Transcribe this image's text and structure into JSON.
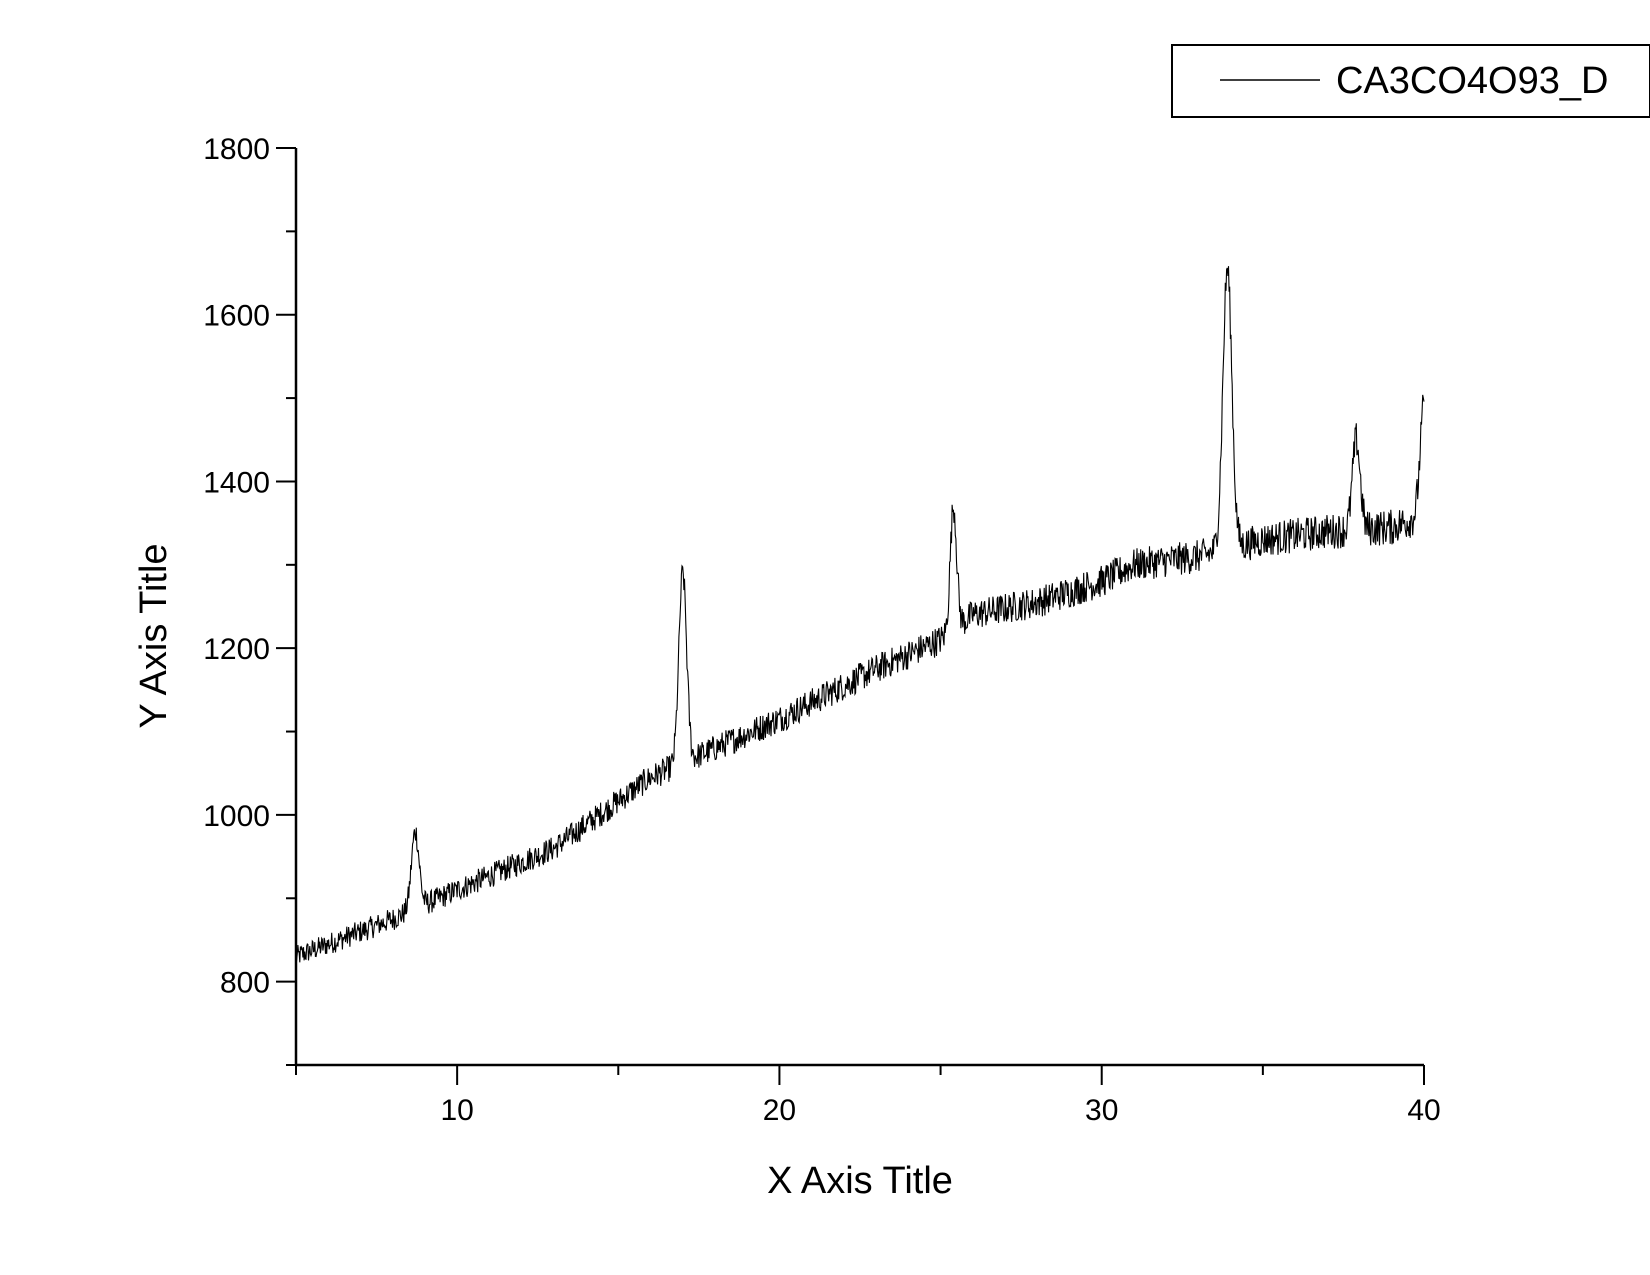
{
  "chart_data": {
    "type": "line",
    "xlabel": "X Axis Title",
    "ylabel": "Y Axis Title",
    "xlim": [
      5,
      40
    ],
    "ylim": [
      700,
      1800
    ],
    "x_ticks": [
      10,
      20,
      30,
      40
    ],
    "x_minor_ticks": [
      5,
      15,
      25,
      35
    ],
    "y_ticks": [
      800,
      1000,
      1200,
      1400,
      1600,
      1800
    ],
    "y_minor_ticks": [
      700,
      900,
      1100,
      1300,
      1500,
      1700
    ],
    "grid": false,
    "legend_position": "top-right",
    "line_color": "#000000",
    "series": [
      {
        "name": "CA3CO4O93_D",
        "baseline": [
          [
            5,
            830
          ],
          [
            8,
            875
          ],
          [
            10,
            910
          ],
          [
            13,
            960
          ],
          [
            16,
            1045
          ],
          [
            18,
            1080
          ],
          [
            20,
            1115
          ],
          [
            23,
            1175
          ],
          [
            25,
            1210
          ],
          [
            26,
            1240
          ],
          [
            28,
            1255
          ],
          [
            30,
            1280
          ],
          [
            31,
            1300
          ],
          [
            33,
            1310
          ],
          [
            35,
            1330
          ],
          [
            37,
            1340
          ],
          [
            39,
            1345
          ],
          [
            40,
            1360
          ]
        ],
        "peaks": [
          {
            "x": 8.7,
            "y": 980,
            "width": 0.12
          },
          {
            "x": 17.0,
            "y": 1290,
            "width": 0.12
          },
          {
            "x": 25.4,
            "y": 1370,
            "width": 0.1
          },
          {
            "x": 33.9,
            "y": 1655,
            "width": 0.14
          },
          {
            "x": 37.9,
            "y": 1450,
            "width": 0.12
          },
          {
            "x": 40.0,
            "y": 1490,
            "width": 0.12
          }
        ],
        "noise_amplitude": 22
      }
    ]
  }
}
